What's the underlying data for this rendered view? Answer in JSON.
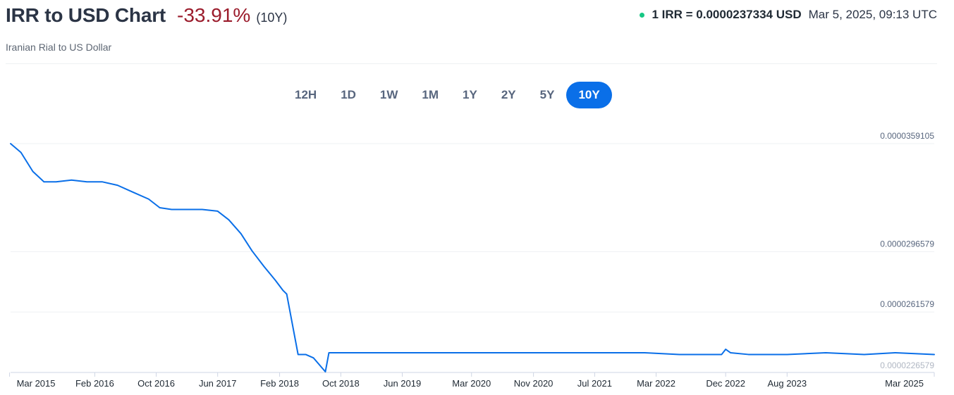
{
  "header": {
    "title": "IRR to USD Chart",
    "change": "-33.91%",
    "period": "(10Y)",
    "subtitle": "Iranian Rial to US Dollar",
    "rate": "1 IRR = 0.0000237334 USD",
    "timestamp": "Mar 5, 2025, 09:13 UTC",
    "live_dot_color": "#16c784",
    "change_color": "#9b1c2c"
  },
  "ranges": [
    {
      "label": "12H",
      "active": false
    },
    {
      "label": "1D",
      "active": false
    },
    {
      "label": "1W",
      "active": false
    },
    {
      "label": "1M",
      "active": false
    },
    {
      "label": "1Y",
      "active": false
    },
    {
      "label": "2Y",
      "active": false
    },
    {
      "label": "5Y",
      "active": false
    },
    {
      "label": "10Y",
      "active": true
    }
  ],
  "chart_data": {
    "type": "line",
    "line_color": "#0a6fe8",
    "grid": true,
    "ylim": [
      2.26579e-05,
      3.59105e-05
    ],
    "yticks": [
      "0.0000359105",
      "0.0000296579",
      "0.0000261579",
      "0.0000226579"
    ],
    "xticks": [
      "Mar 2015",
      "Feb 2016",
      "Oct 2016",
      "Jun 2017",
      "Feb 2018",
      "Oct 2018",
      "Jun 2019",
      "Mar 2020",
      "Nov 2020",
      "Jul 2021",
      "Mar 2022",
      "Dec 2022",
      "Aug 2023",
      "Mar 2025"
    ],
    "x": [
      "2015-03-05",
      "2015-04-15",
      "2015-06-01",
      "2015-07-15",
      "2015-09-01",
      "2015-11-01",
      "2016-01-01",
      "2016-03-01",
      "2016-05-01",
      "2016-07-01",
      "2016-09-01",
      "2016-10-15",
      "2016-12-01",
      "2017-02-01",
      "2017-04-01",
      "2017-06-01",
      "2017-07-15",
      "2017-09-01",
      "2017-10-15",
      "2017-12-01",
      "2018-01-15",
      "2018-02-15",
      "2018-03-01",
      "2018-04-15",
      "2018-05-15",
      "2018-06-15",
      "2018-08-01",
      "2018-08-15",
      "2018-09-01",
      "2019-03-01",
      "2019-09-01",
      "2020-03-01",
      "2020-09-01",
      "2020-11-01",
      "2021-03-01",
      "2021-09-01",
      "2022-01-15",
      "2022-06-01",
      "2022-11-15",
      "2022-12-01",
      "2022-12-20",
      "2023-03-01",
      "2023-08-01",
      "2024-01-01",
      "2024-06-01",
      "2024-10-01",
      "2025-03-05"
    ],
    "values": [
      3.591e-05,
      3.54e-05,
      3.43e-05,
      3.37e-05,
      3.37e-05,
      3.38e-05,
      3.37e-05,
      3.37e-05,
      3.35e-05,
      3.31e-05,
      3.27e-05,
      3.22e-05,
      3.21e-05,
      3.21e-05,
      3.21e-05,
      3.2e-05,
      3.15e-05,
      3.07e-05,
      2.97e-05,
      2.88e-05,
      2.8e-05,
      2.74e-05,
      2.72e-05,
      2.37e-05,
      2.37e-05,
      2.35e-05,
      2.27e-05,
      2.38e-05,
      2.38e-05,
      2.38e-05,
      2.38e-05,
      2.38e-05,
      2.38e-05,
      2.38e-05,
      2.38e-05,
      2.38e-05,
      2.38e-05,
      2.37e-05,
      2.37e-05,
      2.4e-05,
      2.38e-05,
      2.37e-05,
      2.37e-05,
      2.38e-05,
      2.37e-05,
      2.38e-05,
      2.37e-05
    ]
  }
}
